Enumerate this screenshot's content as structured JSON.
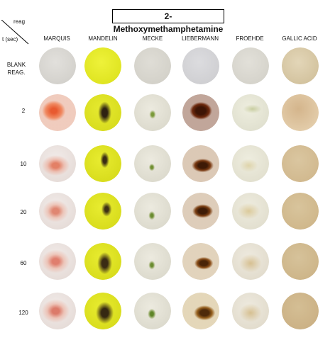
{
  "title": "2-Methoxymethamphetamine",
  "corner": {
    "reag": "reag",
    "time": "t (sec)"
  },
  "columns": [
    "MARQUIS",
    "MANDELIN",
    "MECKE",
    "LIEBERMANN",
    "FROEHDE",
    "GALLIC ACID"
  ],
  "rows": [
    {
      "label": "BLANK REAG.",
      "label_lines": [
        "BLANK",
        "REAG."
      ]
    },
    {
      "label": "2"
    },
    {
      "label": "10"
    },
    {
      "label": "20"
    },
    {
      "label": "60"
    },
    {
      "label": "120"
    }
  ],
  "colors": {
    "marquis_blank": "#d9d7d2",
    "marquis_reaction": "#e96a45",
    "mandelin_blank": "#e3e826",
    "mandelin_reaction": "#4a3a1c",
    "mecke_blank": "#d6d4cc",
    "mecke_reaction": "#7b9a3a",
    "liebermann_blank": "#d3d3d6",
    "liebermann_reaction": "#5a2408",
    "froehde_blank": "#dad8d0",
    "froehde_reaction": "#c9b26a",
    "gallic_blank": "#d8c9a8",
    "gallic_reaction": "#c9a878"
  }
}
